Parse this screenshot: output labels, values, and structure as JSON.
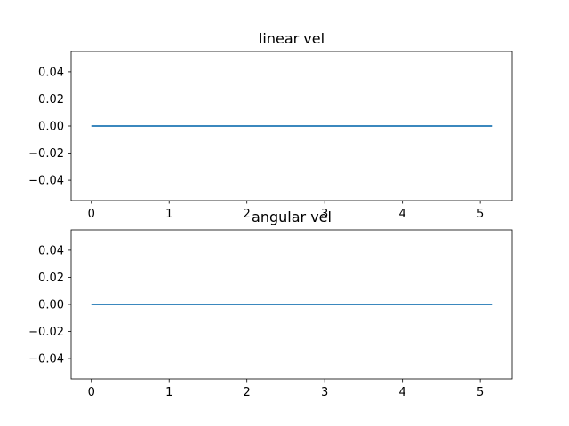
{
  "chart_data": [
    {
      "type": "line",
      "title": "linear vel",
      "xlabel": "",
      "ylabel": "",
      "xlim": [
        -0.26,
        5.41
      ],
      "ylim": [
        -0.055,
        0.055
      ],
      "x_ticks": [
        0,
        1,
        2,
        3,
        4,
        5
      ],
      "y_ticks": [
        -0.04,
        -0.02,
        0.0,
        0.02,
        0.04
      ],
      "x_tick_labels": [
        "0",
        "1",
        "2",
        "3",
        "4",
        "5"
      ],
      "y_tick_labels": [
        "−0.04",
        "−0.02",
        "0.00",
        "0.02",
        "0.04"
      ],
      "grid": false,
      "series": [
        {
          "color": "#1f77b4",
          "x": [
            0,
            5.15
          ],
          "y": [
            0,
            0
          ]
        }
      ]
    },
    {
      "type": "line",
      "title": "angular vel",
      "xlabel": "",
      "ylabel": "",
      "xlim": [
        -0.26,
        5.41
      ],
      "ylim": [
        -0.055,
        0.055
      ],
      "x_ticks": [
        0,
        1,
        2,
        3,
        4,
        5
      ],
      "y_ticks": [
        -0.04,
        -0.02,
        0.0,
        0.02,
        0.04
      ],
      "x_tick_labels": [
        "0",
        "1",
        "2",
        "3",
        "4",
        "5"
      ],
      "y_tick_labels": [
        "−0.04",
        "−0.02",
        "0.00",
        "0.02",
        "0.04"
      ],
      "grid": false,
      "series": [
        {
          "color": "#1f77b4",
          "x": [
            0,
            5.15
          ],
          "y": [
            0,
            0
          ]
        }
      ]
    }
  ]
}
